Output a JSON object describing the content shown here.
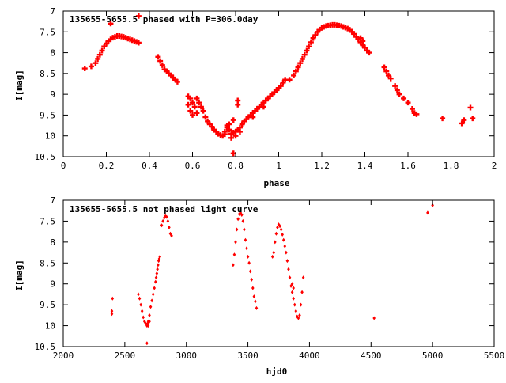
{
  "chart_data": [
    {
      "type": "scatter",
      "title": "135655-5655.5 phased with P=306.0day",
      "xlabel": "phase",
      "ylabel": "I[mag]",
      "xlim": [
        0,
        2
      ],
      "ylim": [
        7,
        10.5
      ],
      "y_inverted": true,
      "grid": false,
      "marker_color": "#ff0000",
      "x_ticks": [
        "0",
        "0.2",
        "0.4",
        "0.6",
        "0.8",
        "1",
        "1.2",
        "1.4",
        "1.6",
        "1.8",
        "2"
      ],
      "y_ticks": [
        "7",
        "7.5",
        "8",
        "8.5",
        "9",
        "9.5",
        "10",
        "10.5"
      ],
      "points": [
        [
          0.1,
          8.38
        ],
        [
          0.13,
          8.33
        ],
        [
          0.15,
          8.25
        ],
        [
          0.16,
          8.15
        ],
        [
          0.17,
          8.05
        ],
        [
          0.18,
          7.95
        ],
        [
          0.19,
          7.85
        ],
        [
          0.2,
          7.78
        ],
        [
          0.21,
          7.72
        ],
        [
          0.22,
          7.68
        ],
        [
          0.23,
          7.64
        ],
        [
          0.24,
          7.62
        ],
        [
          0.25,
          7.6
        ],
        [
          0.26,
          7.6
        ],
        [
          0.27,
          7.61
        ],
        [
          0.28,
          7.62
        ],
        [
          0.29,
          7.64
        ],
        [
          0.3,
          7.66
        ],
        [
          0.31,
          7.68
        ],
        [
          0.32,
          7.7
        ],
        [
          0.33,
          7.72
        ],
        [
          0.34,
          7.74
        ],
        [
          0.35,
          7.76
        ],
        [
          0.22,
          7.3
        ],
        [
          0.35,
          7.12
        ],
        [
          0.44,
          8.1
        ],
        [
          0.45,
          8.2
        ],
        [
          0.46,
          8.3
        ],
        [
          0.47,
          8.4
        ],
        [
          0.48,
          8.45
        ],
        [
          0.49,
          8.5
        ],
        [
          0.5,
          8.55
        ],
        [
          0.51,
          8.6
        ],
        [
          0.52,
          8.65
        ],
        [
          0.53,
          8.7
        ],
        [
          0.58,
          9.05
        ],
        [
          0.59,
          9.1
        ],
        [
          0.6,
          9.2
        ],
        [
          0.61,
          9.3
        ],
        [
          0.62,
          9.45
        ],
        [
          0.58,
          9.25
        ],
        [
          0.59,
          9.4
        ],
        [
          0.6,
          9.5
        ],
        [
          0.62,
          9.1
        ],
        [
          0.63,
          9.2
        ],
        [
          0.64,
          9.3
        ],
        [
          0.65,
          9.4
        ],
        [
          0.66,
          9.55
        ],
        [
          0.67,
          9.65
        ],
        [
          0.68,
          9.72
        ],
        [
          0.69,
          9.78
        ],
        [
          0.7,
          9.85
        ],
        [
          0.71,
          9.9
        ],
        [
          0.72,
          9.95
        ],
        [
          0.73,
          9.98
        ],
        [
          0.74,
          10.0
        ],
        [
          0.75,
          9.96
        ],
        [
          0.76,
          9.75
        ],
        [
          0.77,
          9.85
        ],
        [
          0.78,
          9.95
        ],
        [
          0.79,
          9.92
        ],
        [
          0.8,
          9.9
        ],
        [
          0.81,
          9.85
        ],
        [
          0.82,
          9.8
        ],
        [
          0.83,
          9.72
        ],
        [
          0.84,
          9.65
        ],
        [
          0.85,
          9.6
        ],
        [
          0.86,
          9.55
        ],
        [
          0.87,
          9.5
        ],
        [
          0.88,
          9.45
        ],
        [
          0.89,
          9.4
        ],
        [
          0.9,
          9.35
        ],
        [
          0.91,
          9.3
        ],
        [
          0.92,
          9.25
        ],
        [
          0.93,
          9.2
        ],
        [
          0.94,
          9.15
        ],
        [
          0.95,
          9.1
        ],
        [
          0.96,
          9.05
        ],
        [
          0.97,
          9.0
        ],
        [
          0.98,
          8.95
        ],
        [
          0.99,
          8.9
        ],
        [
          1.0,
          8.85
        ],
        [
          1.01,
          8.8
        ],
        [
          1.02,
          8.72
        ],
        [
          1.03,
          8.65
        ],
        [
          1.76,
          9.58
        ],
        [
          0.79,
          10.42
        ],
        [
          0.77,
          9.72
        ],
        [
          0.76,
          9.8
        ],
        [
          0.8,
          10.0
        ],
        [
          0.79,
          9.62
        ],
        [
          0.81,
          9.25
        ],
        [
          0.81,
          9.15
        ],
        [
          0.78,
          10.05
        ],
        [
          0.82,
          9.9
        ],
        [
          0.75,
          9.9
        ],
        [
          0.88,
          9.55
        ],
        [
          0.93,
          9.3
        ],
        [
          1.05,
          8.65
        ],
        [
          1.07,
          8.55
        ],
        [
          1.08,
          8.45
        ],
        [
          1.09,
          8.35
        ],
        [
          1.1,
          8.25
        ],
        [
          1.11,
          8.15
        ],
        [
          1.12,
          8.05
        ],
        [
          1.13,
          7.95
        ],
        [
          1.14,
          7.85
        ],
        [
          1.15,
          7.75
        ],
        [
          1.16,
          7.65
        ],
        [
          1.17,
          7.58
        ],
        [
          1.18,
          7.5
        ],
        [
          1.19,
          7.45
        ],
        [
          1.2,
          7.4
        ],
        [
          1.21,
          7.38
        ],
        [
          1.22,
          7.36
        ],
        [
          1.23,
          7.35
        ],
        [
          1.24,
          7.34
        ],
        [
          1.25,
          7.33
        ],
        [
          1.26,
          7.33
        ],
        [
          1.27,
          7.34
        ],
        [
          1.28,
          7.35
        ],
        [
          1.29,
          7.36
        ],
        [
          1.3,
          7.38
        ],
        [
          1.31,
          7.4
        ],
        [
          1.32,
          7.42
        ],
        [
          1.33,
          7.45
        ],
        [
          1.34,
          7.5
        ],
        [
          1.35,
          7.55
        ],
        [
          1.36,
          7.62
        ],
        [
          1.37,
          7.68
        ],
        [
          1.38,
          7.75
        ],
        [
          1.39,
          7.82
        ],
        [
          1.4,
          7.88
        ],
        [
          1.41,
          7.95
        ],
        [
          1.42,
          8.0
        ],
        [
          1.38,
          7.65
        ],
        [
          1.39,
          7.72
        ],
        [
          1.49,
          8.35
        ],
        [
          1.5,
          8.45
        ],
        [
          1.51,
          8.55
        ],
        [
          1.52,
          8.62
        ],
        [
          1.54,
          8.8
        ],
        [
          1.55,
          8.9
        ],
        [
          1.56,
          9.0
        ],
        [
          1.58,
          9.1
        ],
        [
          1.6,
          9.2
        ],
        [
          1.62,
          9.35
        ],
        [
          1.63,
          9.45
        ],
        [
          1.64,
          9.48
        ],
        [
          1.85,
          9.7
        ],
        [
          1.86,
          9.62
        ],
        [
          1.89,
          9.32
        ],
        [
          1.9,
          9.58
        ]
      ]
    },
    {
      "type": "scatter",
      "title": "135655-5655.5 not phased light curve",
      "xlabel": "hjd0",
      "ylabel": "I[mag]",
      "xlim": [
        2000,
        5500
      ],
      "ylim": [
        7,
        10.5
      ],
      "y_inverted": true,
      "grid": false,
      "marker_color": "#ff0000",
      "x_ticks": [
        "2000",
        "2500",
        "3000",
        "3500",
        "4000",
        "4500",
        "5000",
        "5500"
      ],
      "y_ticks": [
        "7",
        "7.5",
        "8",
        "8.5",
        "9",
        "9.5",
        "10",
        "10.5"
      ],
      "points": [
        [
          2395,
          9.65
        ],
        [
          2395,
          9.72
        ],
        [
          2400,
          9.35
        ],
        [
          2610,
          9.25
        ],
        [
          2620,
          9.35
        ],
        [
          2630,
          9.5
        ],
        [
          2640,
          9.65
        ],
        [
          2650,
          9.8
        ],
        [
          2660,
          9.9
        ],
        [
          2670,
          9.95
        ],
        [
          2680,
          10.0
        ],
        [
          2685,
          9.95
        ],
        [
          2690,
          9.9
        ],
        [
          2700,
          9.75
        ],
        [
          2710,
          9.55
        ],
        [
          2720,
          9.4
        ],
        [
          2730,
          9.25
        ],
        [
          2740,
          9.1
        ],
        [
          2750,
          8.95
        ],
        [
          2755,
          8.85
        ],
        [
          2760,
          8.75
        ],
        [
          2765,
          8.65
        ],
        [
          2770,
          8.55
        ],
        [
          2775,
          8.45
        ],
        [
          2780,
          8.4
        ],
        [
          2785,
          8.35
        ],
        [
          2680,
          10.42
        ],
        [
          2690,
          10.0
        ],
        [
          2700,
          9.9
        ],
        [
          2800,
          7.6
        ],
        [
          2810,
          7.5
        ],
        [
          2820,
          7.42
        ],
        [
          2830,
          7.38
        ],
        [
          2840,
          7.4
        ],
        [
          2850,
          7.5
        ],
        [
          2860,
          7.65
        ],
        [
          2870,
          7.8
        ],
        [
          2880,
          7.85
        ],
        [
          3380,
          8.55
        ],
        [
          3390,
          8.3
        ],
        [
          3400,
          8.0
        ],
        [
          3410,
          7.7
        ],
        [
          3420,
          7.45
        ],
        [
          3430,
          7.33
        ],
        [
          3440,
          7.3
        ],
        [
          3450,
          7.35
        ],
        [
          3460,
          7.5
        ],
        [
          3470,
          7.7
        ],
        [
          3480,
          7.95
        ],
        [
          3490,
          8.15
        ],
        [
          3500,
          8.35
        ],
        [
          3510,
          8.5
        ],
        [
          3520,
          8.7
        ],
        [
          3530,
          8.9
        ],
        [
          3540,
          9.1
        ],
        [
          3550,
          9.3
        ],
        [
          3560,
          9.42
        ],
        [
          3570,
          9.58
        ],
        [
          3700,
          8.35
        ],
        [
          3710,
          8.25
        ],
        [
          3720,
          8.0
        ],
        [
          3730,
          7.8
        ],
        [
          3740,
          7.65
        ],
        [
          3750,
          7.58
        ],
        [
          3760,
          7.62
        ],
        [
          3770,
          7.7
        ],
        [
          3780,
          7.82
        ],
        [
          3790,
          7.95
        ],
        [
          3800,
          8.1
        ],
        [
          3810,
          8.25
        ],
        [
          3820,
          8.45
        ],
        [
          3830,
          8.65
        ],
        [
          3840,
          8.85
        ],
        [
          3850,
          9.05
        ],
        [
          3860,
          9.2
        ],
        [
          3870,
          9.35
        ],
        [
          3880,
          9.5
        ],
        [
          3890,
          9.65
        ],
        [
          3900,
          9.78
        ],
        [
          3910,
          9.82
        ],
        [
          3920,
          9.75
        ],
        [
          3930,
          9.5
        ],
        [
          3940,
          9.2
        ],
        [
          3950,
          8.85
        ],
        [
          3860,
          9.0
        ],
        [
          3870,
          9.1
        ],
        [
          4525,
          9.82
        ],
        [
          4960,
          7.3
        ],
        [
          5000,
          7.12
        ]
      ]
    }
  ]
}
